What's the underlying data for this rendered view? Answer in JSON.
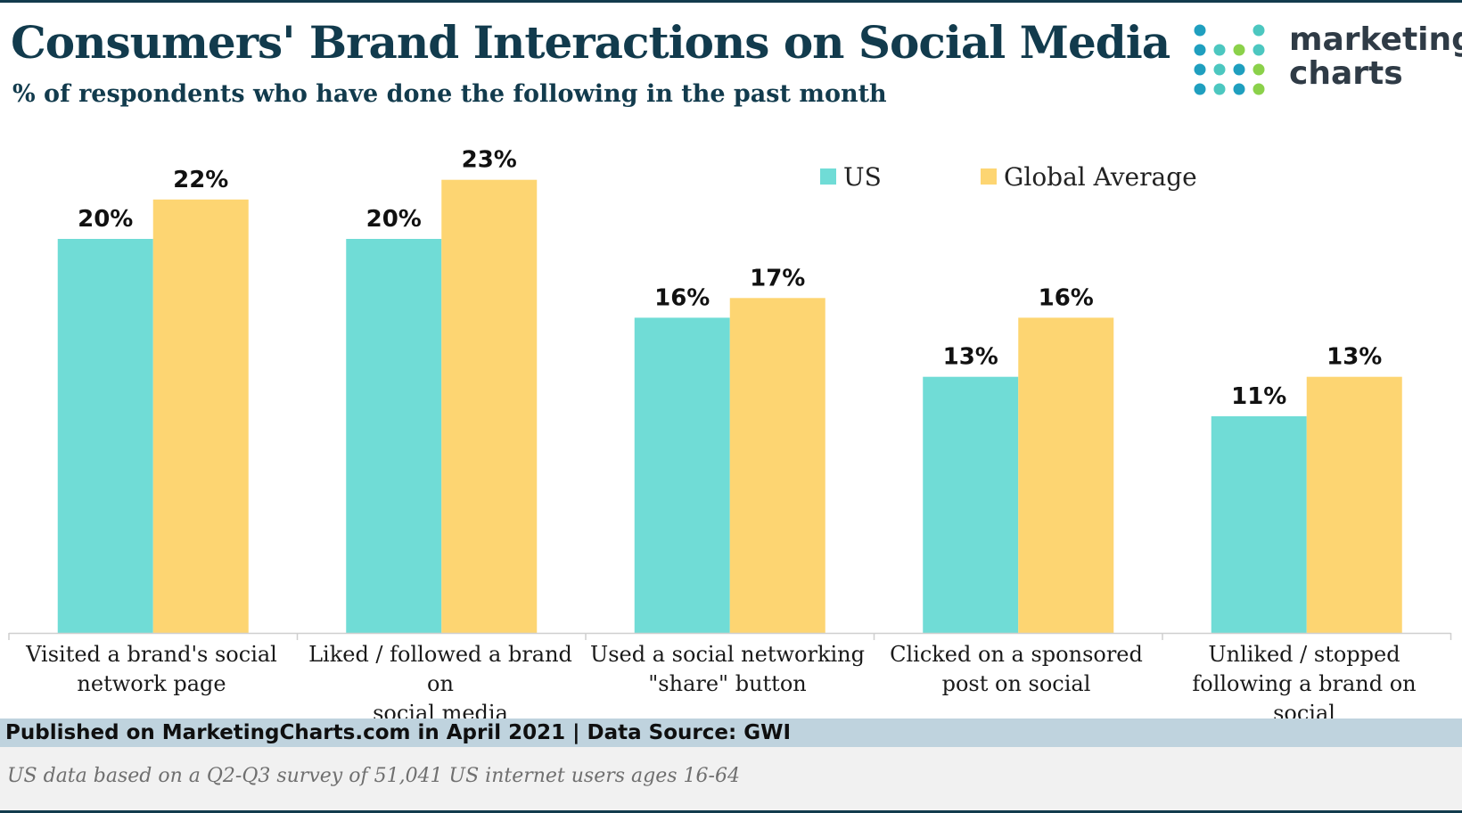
{
  "header": {
    "title": "Consumers' Brand Interactions on Social Media",
    "subtitle": "% of respondents who have done the following in the past month"
  },
  "logo": {
    "line1": "marketing",
    "line2": "charts",
    "colors": [
      "#1f9fbf",
      "#4cc7c0",
      "#8bd14a",
      "#2b6f8e"
    ]
  },
  "chart_data": {
    "type": "bar",
    "title": "Consumers' Brand Interactions on Social Media",
    "subtitle": "% of respondents who have done the following in the past month",
    "categories": [
      "Visited a brand's social network page",
      "Liked / followed a brand on social media",
      "Used a social networking \"share\" button",
      "Clicked on a sponsored post on social",
      "Unliked / stopped following a brand on social"
    ],
    "category_lines": [
      [
        "Visited a brand's social",
        "network page"
      ],
      [
        "Liked / followed a brand on",
        "social media"
      ],
      [
        "Used a social networking",
        "\"share\" button"
      ],
      [
        "Clicked on a sponsored",
        "post on social"
      ],
      [
        "Unliked / stopped",
        "following a brand on social"
      ]
    ],
    "series": [
      {
        "name": "US",
        "color": "#70dcd6",
        "values": [
          20,
          20,
          16,
          13,
          11
        ],
        "labels": [
          "20%",
          "20%",
          "16%",
          "13%",
          "11%"
        ]
      },
      {
        "name": "Global Average",
        "color": "#fdd572",
        "values": [
          22,
          23,
          17,
          16,
          13
        ],
        "labels": [
          "22%",
          "23%",
          "17%",
          "16%",
          "13%"
        ]
      }
    ],
    "ylim": [
      0,
      25
    ],
    "grid": false,
    "legend": "top-right"
  },
  "footer": {
    "published": "Published on MarketingCharts.com in April 2021 | Data Source: GWI",
    "note": "US data based on a Q2-Q3 survey of 51,041 US internet users ages 16-64"
  }
}
